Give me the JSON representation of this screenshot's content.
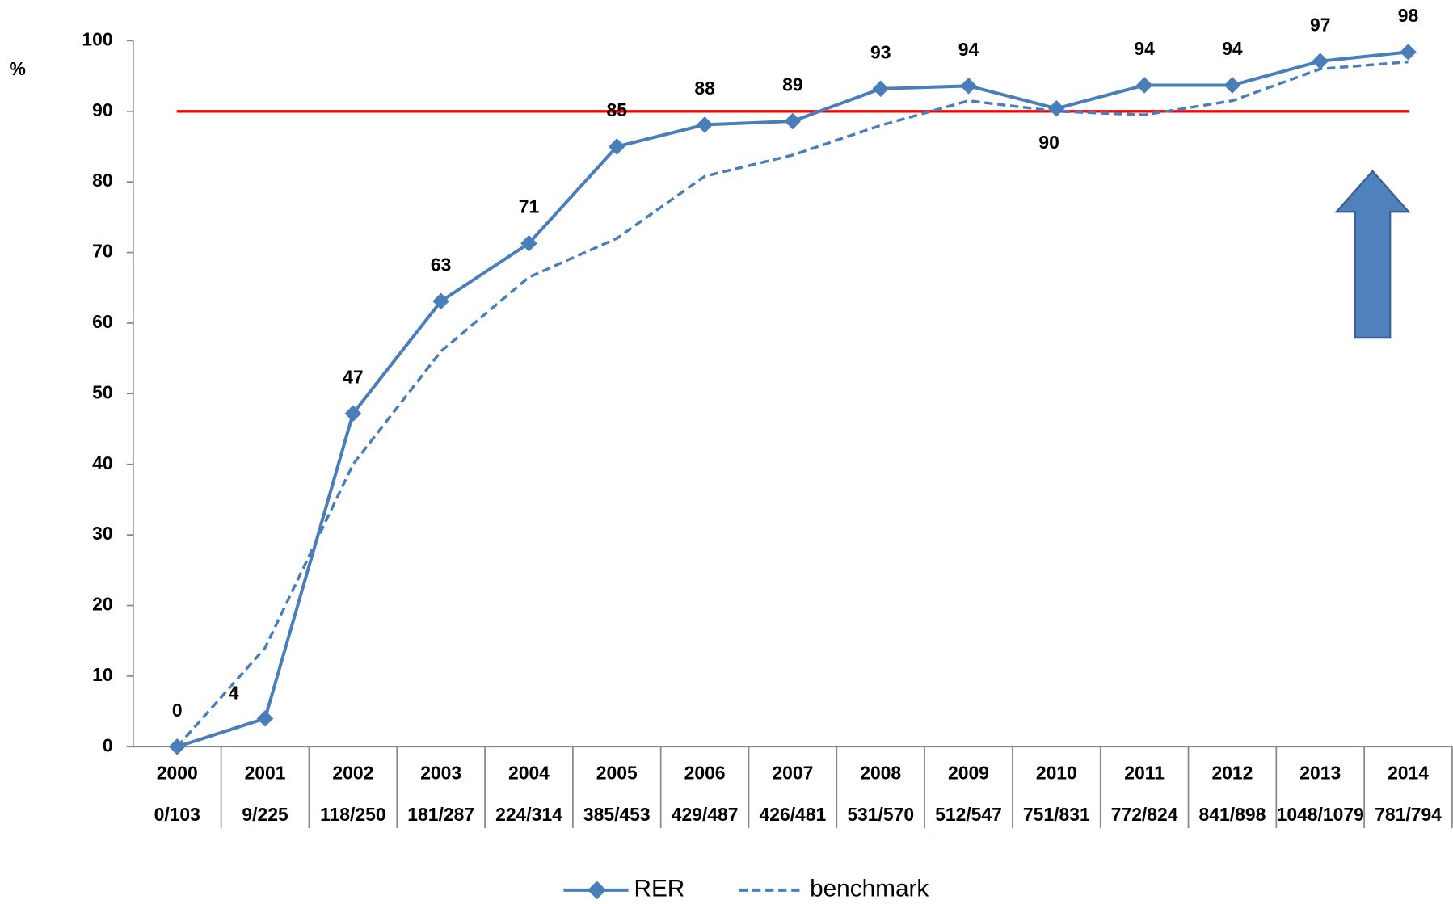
{
  "chart_data": {
    "type": "line",
    "categories": [
      "2000",
      "2001",
      "2002",
      "2003",
      "2004",
      "2005",
      "2006",
      "2007",
      "2008",
      "2009",
      "2010",
      "2011",
      "2012",
      "2013",
      "2014"
    ],
    "sample_sizes": [
      "0/103",
      "9/225",
      "118/250",
      "181/287",
      "224/314",
      "385/453",
      "429/487",
      "426/481",
      "531/570",
      "512/547",
      "751/831",
      "772/824",
      "841/898",
      "1048/1079",
      "781/794"
    ],
    "series": [
      {
        "name": "RER",
        "color": "#4a7ebb",
        "style": "solid",
        "marker": "diamond",
        "values": [
          0,
          4,
          47.2,
          63.1,
          71.3,
          85,
          88.1,
          88.6,
          93.2,
          93.6,
          90.4,
          93.7,
          93.7,
          97.1,
          98.4
        ],
        "value_labels": [
          "0",
          "4",
          "47",
          "63",
          "71",
          "85",
          "88",
          "89",
          "93",
          "94",
          "90",
          "94",
          "94",
          "97",
          "98"
        ]
      },
      {
        "name": "benchmark",
        "color": "#4a7ebb",
        "style": "dashed",
        "values": [
          0,
          14,
          40,
          56,
          66.5,
          72,
          80.8,
          83.8,
          88,
          91.5,
          90,
          89.5,
          91.5,
          96,
          97
        ]
      }
    ],
    "target": {
      "value": 90,
      "color": "#ff0000"
    },
    "ylabel": "%",
    "ylim": [
      0,
      100
    ],
    "yticks": [
      0,
      10,
      20,
      30,
      40,
      50,
      60,
      70,
      80,
      90,
      100
    ]
  }
}
